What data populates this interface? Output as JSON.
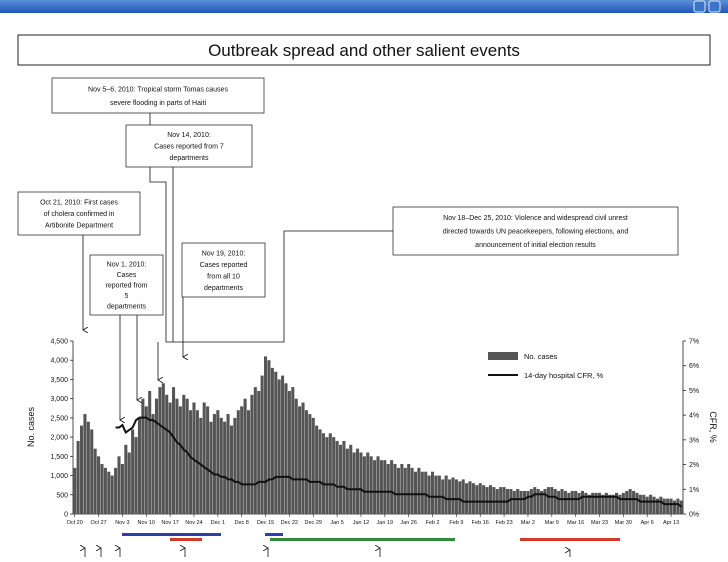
{
  "chart_data": {
    "type": "bar",
    "title": "Outbreak spread and other salient events",
    "ylabel": "No. cases",
    "y2label": "CFR, %",
    "categories": [
      "Oct 20",
      null,
      null,
      null,
      null,
      null,
      null,
      "Oct 27",
      null,
      null,
      null,
      null,
      null,
      null,
      "Nov 3",
      null,
      null,
      null,
      null,
      null,
      null,
      "Nov 10",
      null,
      null,
      null,
      null,
      null,
      null,
      "Nov 17",
      null,
      null,
      null,
      null,
      null,
      null,
      "Nov 24",
      null,
      null,
      null,
      null,
      null,
      null,
      "Dec 1",
      null,
      null,
      null,
      null,
      null,
      null,
      "Dec 8",
      null,
      null,
      null,
      null,
      null,
      null,
      "Dec 15",
      null,
      null,
      null,
      null,
      null,
      null,
      "Dec 22",
      null,
      null,
      null,
      null,
      null,
      null,
      "Dec 29",
      null,
      null,
      null,
      null,
      null,
      null,
      "Jan 5",
      null,
      null,
      null,
      null,
      null,
      null,
      "Jan 12",
      null,
      null,
      null,
      null,
      null,
      null,
      "Jan 19",
      null,
      null,
      null,
      null,
      null,
      null,
      "Jan 26",
      null,
      null,
      null,
      null,
      null,
      null,
      "Feb 2",
      null,
      null,
      null,
      null,
      null,
      null,
      "Feb 9",
      null,
      null,
      null,
      null,
      null,
      null,
      "Feb 16",
      null,
      null,
      null,
      null,
      null,
      null,
      "Feb 23",
      null,
      null,
      null,
      null,
      null,
      null,
      "Mar 2",
      null,
      null,
      null,
      null,
      null,
      null,
      "Mar 9",
      null,
      null,
      null,
      null,
      null,
      null,
      "Mar 16",
      null,
      null,
      null,
      null,
      null,
      null,
      "Mar 23",
      null,
      null,
      null,
      null,
      null,
      null,
      "Mar 30",
      null,
      null,
      null,
      null,
      null,
      null,
      "Apr 6",
      null,
      null,
      null,
      null,
      null,
      null,
      "Apr 13",
      null,
      null,
      null
    ],
    "series": [
      {
        "name": "No. cases",
        "color": "#555555",
        "values": [
          1200,
          1900,
          2300,
          2600,
          2400,
          2200,
          1700,
          1500,
          1300,
          1200,
          1100,
          1000,
          1200,
          1500,
          1300,
          1800,
          1600,
          2200,
          2000,
          2500,
          3000,
          2800,
          3200,
          2600,
          3000,
          3300,
          3400,
          3100,
          2900,
          3300,
          3000,
          2800,
          3100,
          3000,
          2700,
          2900,
          2700,
          2500,
          2900,
          2800,
          2400,
          2600,
          2700,
          2500,
          2400,
          2600,
          2300,
          2500,
          2700,
          2800,
          3000,
          2700,
          3100,
          3300,
          3200,
          3600,
          4100,
          4000,
          3800,
          3700,
          3500,
          3600,
          3400,
          3200,
          3300,
          3000,
          2800,
          2900,
          2700,
          2600,
          2500,
          2300,
          2200,
          2100,
          2000,
          2100,
          2000,
          1900,
          1800,
          1900,
          1700,
          1800,
          1600,
          1700,
          1600,
          1500,
          1600,
          1500,
          1400,
          1500,
          1400,
          1400,
          1300,
          1400,
          1300,
          1200,
          1300,
          1200,
          1300,
          1200,
          1100,
          1200,
          1100,
          1100,
          1000,
          1100,
          1000,
          1000,
          900,
          1000,
          900,
          950,
          900,
          850,
          900,
          800,
          850,
          800,
          750,
          800,
          750,
          700,
          750,
          700,
          650,
          700,
          700,
          650,
          650,
          600,
          650,
          600,
          600,
          600,
          650,
          700,
          650,
          600,
          650,
          700,
          700,
          650,
          600,
          650,
          600,
          550,
          600,
          600,
          550,
          600,
          550,
          500,
          550,
          550,
          550,
          500,
          550,
          500,
          500,
          550,
          500,
          550,
          600,
          650,
          600,
          550,
          500,
          500,
          450,
          500,
          450,
          400,
          450,
          400,
          400,
          400,
          350,
          400,
          350
        ]
      },
      {
        "name": "14-day hospital CFR, %",
        "color": "#111111",
        "axis": "y2",
        "values": [
          null,
          null,
          null,
          null,
          null,
          null,
          null,
          null,
          null,
          null,
          null,
          null,
          3.5,
          3.5,
          3.6,
          3.3,
          3.4,
          3.5,
          3.8,
          3.9,
          3.9,
          3.9,
          3.8,
          3.8,
          3.7,
          3.6,
          3.5,
          3.4,
          3.3,
          3.1,
          2.9,
          2.8,
          2.6,
          2.5,
          2.3,
          2.2,
          2.1,
          2.0,
          1.9,
          1.8,
          1.7,
          1.6,
          1.6,
          1.5,
          1.5,
          1.4,
          1.4,
          1.3,
          1.3,
          1.2,
          1.2,
          1.2,
          1.2,
          1.2,
          1.3,
          1.3,
          1.3,
          1.4,
          1.4,
          1.5,
          1.5,
          1.5,
          1.5,
          1.5,
          1.4,
          1.4,
          1.4,
          1.4,
          1.4,
          1.3,
          1.3,
          1.3,
          1.3,
          1.2,
          1.2,
          1.2,
          1.2,
          1.1,
          1.1,
          1.1,
          1.0,
          1.0,
          1.0,
          1.0,
          1.0,
          0.9,
          0.9,
          0.9,
          0.9,
          0.9,
          0.9,
          0.9,
          0.9,
          0.9,
          0.8,
          0.8,
          0.8,
          0.8,
          0.8,
          0.8,
          0.8,
          0.8,
          0.8,
          0.8,
          0.7,
          0.7,
          0.7,
          0.7,
          0.7,
          0.6,
          0.6,
          0.6,
          0.6,
          0.6,
          0.5,
          0.5,
          0.5,
          0.5,
          0.5,
          0.5,
          0.5,
          0.5,
          0.5,
          0.5,
          0.5,
          0.5,
          0.5,
          0.5,
          0.6,
          0.6,
          0.6,
          0.6,
          0.6,
          0.7,
          0.7,
          0.8,
          0.8,
          0.8,
          0.8,
          0.7,
          0.7,
          0.7,
          0.6,
          0.6,
          0.6,
          0.6,
          0.6,
          0.6,
          0.6,
          0.7,
          0.7,
          0.7,
          0.7,
          0.7,
          0.7,
          0.7,
          0.7,
          0.7,
          0.7,
          0.7,
          0.6,
          0.6,
          0.6,
          0.6,
          0.6,
          0.6,
          0.5,
          0.5,
          0.5,
          0.5,
          0.5,
          0.5,
          0.5,
          0.4,
          0.4,
          0.4,
          0.4,
          0.4,
          0.3
        ]
      }
    ],
    "ylim": [
      0,
      4500
    ],
    "yticks": [
      0,
      500,
      {
        "value": 1000,
        "label": "1,000"
      },
      {
        "value": 1500,
        "label": "1,500"
      },
      {
        "value": 2000,
        "label": "2,000"
      },
      {
        "value": 2500,
        "label": "2,500"
      },
      {
        "value": 3000,
        "label": "3,000"
      },
      {
        "value": 3500,
        "label": "3,500"
      },
      {
        "value": 4000,
        "label": "4,000"
      },
      {
        "value": 4500,
        "label": "4,500"
      }
    ],
    "y2lim": [
      0,
      7
    ],
    "y2ticks": [
      {
        "value": 0,
        "label": "0%"
      },
      {
        "value": 1,
        "label": "1%"
      },
      {
        "value": 2,
        "label": "2%"
      },
      {
        "value": 3,
        "label": "3%"
      },
      {
        "value": 4,
        "label": "4%"
      },
      {
        "value": 5,
        "label": "5%"
      },
      {
        "value": 6,
        "label": "6%"
      },
      {
        "value": 7,
        "label": "7%"
      }
    ],
    "legend": "upper right",
    "annotations": [
      {
        "lines": [
          "Oct 21, 2010: First cases",
          "of cholera confirmed in",
          "Artibonite Department"
        ]
      },
      {
        "lines": [
          "Nov 1, 2010:",
          "Cases",
          "reported from",
          "5",
          "departments"
        ]
      },
      {
        "lines": [
          "Nov 5–6, 2010: Tropical storm Tomas causes",
          "severe flooding in parts of Haiti"
        ]
      },
      {
        "lines": [
          "Nov 14, 2010:",
          "Cases reported from 7",
          "departments"
        ]
      },
      {
        "lines": [
          "Nov  19, 2010:",
          "Cases reported",
          "from all 10",
          "departments"
        ]
      },
      {
        "lines": [
          "Nov 18–Dec 25, 2010: Violence and widespread civil unrest",
          "directed towards UN peacekeepers, following elections, and",
          "announcement of initial election results"
        ]
      }
    ]
  }
}
